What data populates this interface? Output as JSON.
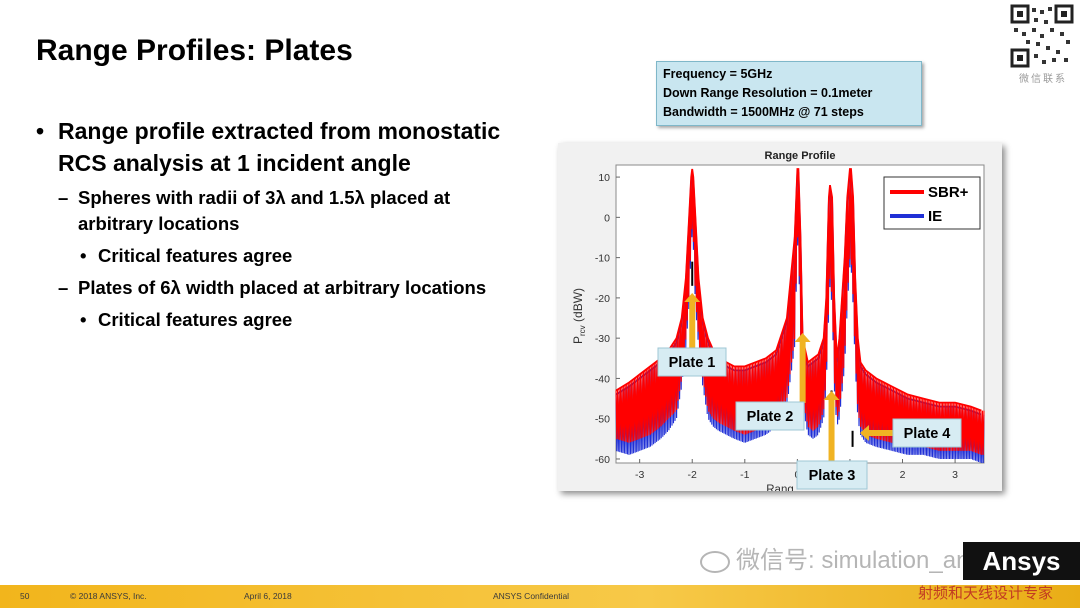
{
  "slide": {
    "title": "Range Profiles: Plates",
    "bullets": [
      {
        "level": 1,
        "text": "Range profile extracted from monostatic RCS analysis at 1 incident angle"
      },
      {
        "level": 2,
        "text": "Spheres with radii of 3λ and 1.5λ placed at arbitrary locations"
      },
      {
        "level": 3,
        "text": "Critical features agree"
      },
      {
        "level": 2,
        "text": "Plates of 6λ width placed at arbitrary locations"
      },
      {
        "level": 3,
        "text": "Critical features agree"
      }
    ]
  },
  "infobox": {
    "line1": "Frequency = 5GHz",
    "line2": "Down Range Resolution = 0.1meter",
    "line3": "Bandwidth = 1500MHz @ 71 steps"
  },
  "callouts": {
    "plate1": "Plate 1",
    "plate2": "Plate 2",
    "plate3": "Plate 3",
    "plate4": "Plate 4"
  },
  "chart_data": {
    "type": "line",
    "title": "Range Profile",
    "xlabel": "Rang",
    "ylabel": "P rcv (dBW)",
    "ylabel_main": "P",
    "ylabel_sub": "rcv",
    "ylabel_unit": "(dBW)",
    "xlim": [
      -3.45,
      3.55
    ],
    "ylim": [
      -61,
      13
    ],
    "xticks": [
      -3,
      -2,
      -1,
      0,
      1,
      2,
      3
    ],
    "yticks": [
      10,
      0,
      -10,
      -20,
      -30,
      -40,
      -50,
      -60
    ],
    "grid": false,
    "legend": {
      "position": "top-right",
      "entries": [
        {
          "name": "SBR+",
          "color": "#ff0000"
        },
        {
          "name": "IE",
          "color": "#1f2fd6"
        }
      ]
    },
    "series": [
      {
        "name": "SBR+",
        "color": "#ff0000",
        "x": [
          -3.45,
          -3.2,
          -3.0,
          -2.8,
          -2.6,
          -2.45,
          -2.3,
          -2.2,
          -2.12,
          -2.06,
          -2.02,
          -2.0,
          -1.98,
          -1.94,
          -1.88,
          -1.8,
          -1.7,
          -1.6,
          -1.5,
          -1.35,
          -1.2,
          -1.0,
          -0.8,
          -0.6,
          -0.4,
          -0.2,
          -0.05,
          0.0,
          0.02,
          0.06,
          0.1,
          0.2,
          0.3,
          0.4,
          0.5,
          0.55,
          0.6,
          0.62,
          0.66,
          0.7,
          0.75,
          0.8,
          0.9,
          0.95,
          1.0,
          1.02,
          1.06,
          1.1,
          1.15,
          1.2,
          1.3,
          1.5,
          1.8,
          2.1,
          2.4,
          2.7,
          3.0,
          3.3,
          3.5
        ],
        "y": [
          -43,
          -41,
          -39,
          -37,
          -35,
          -33,
          -30,
          -25,
          -15,
          0,
          10,
          12,
          10,
          0,
          -15,
          -25,
          -30,
          -33,
          -34,
          -36,
          -37,
          -37,
          -36,
          -35,
          -33,
          -25,
          -5,
          12,
          12,
          -5,
          -30,
          -36,
          -35,
          -34,
          -30,
          -20,
          5,
          8,
          5,
          -20,
          -35,
          -30,
          -10,
          5,
          12,
          12,
          5,
          -15,
          -30,
          -36,
          -38,
          -40,
          -42,
          -44,
          -45,
          -46,
          -46,
          -47,
          -48
        ],
        "min_envelope_y": [
          -55,
          -56,
          -55,
          -54,
          -52,
          -50,
          -48,
          -40,
          -30,
          -20,
          -5,
          -2,
          -5,
          -20,
          -30,
          -40,
          -48,
          -50,
          -51,
          -52,
          -53,
          -54,
          -53,
          -52,
          -50,
          -45,
          -30,
          -5,
          -5,
          -30,
          -45,
          -52,
          -53,
          -52,
          -48,
          -40,
          -20,
          -15,
          -20,
          -40,
          -50,
          -48,
          -35,
          -20,
          -10,
          -10,
          -20,
          -35,
          -48,
          -52,
          -54,
          -55,
          -56,
          -57,
          -57,
          -58,
          -58,
          -58,
          -59
        ]
      },
      {
        "name": "IE",
        "color": "#1f2fd6",
        "x": [
          -3.45,
          -3.2,
          -3.0,
          -2.8,
          -2.6,
          -2.45,
          -2.3,
          -2.2,
          -2.12,
          -2.06,
          -2.02,
          -2.0,
          -1.98,
          -1.94,
          -1.88,
          -1.8,
          -1.7,
          -1.6,
          -1.5,
          -1.35,
          -1.2,
          -1.0,
          -0.8,
          -0.6,
          -0.4,
          -0.2,
          -0.05,
          0.0,
          0.02,
          0.06,
          0.1,
          0.2,
          0.3,
          0.4,
          0.5,
          0.55,
          0.6,
          0.62,
          0.66,
          0.7,
          0.75,
          0.8,
          0.9,
          0.95,
          1.0,
          1.02,
          1.06,
          1.1,
          1.15,
          1.2,
          1.3,
          1.5,
          1.8,
          2.1,
          2.4,
          2.7,
          3.0,
          3.3,
          3.5
        ],
        "y": [
          -44,
          -42,
          -40,
          -38,
          -36,
          -34,
          -31,
          -26,
          -16,
          -1,
          9,
          11,
          9,
          -1,
          -16,
          -26,
          -31,
          -34,
          -35,
          -37,
          -38,
          -38,
          -37,
          -36,
          -34,
          -26,
          -6,
          11,
          11,
          -6,
          -31,
          -37,
          -36,
          -35,
          -31,
          -21,
          4,
          7,
          4,
          -21,
          -36,
          -31,
          -11,
          4,
          11,
          11,
          4,
          -16,
          -31,
          -37,
          -39,
          -41,
          -43,
          -45,
          -46,
          -47,
          -47,
          -48,
          -49
        ],
        "min_envelope_y": [
          -58,
          -59,
          -58,
          -57,
          -55,
          -53,
          -50,
          -42,
          -32,
          -22,
          -7,
          -4,
          -7,
          -22,
          -32,
          -42,
          -50,
          -52,
          -53,
          -54,
          -55,
          -56,
          -55,
          -54,
          -52,
          -47,
          -32,
          -7,
          -7,
          -32,
          -47,
          -54,
          -55,
          -54,
          -50,
          -42,
          -22,
          -17,
          -22,
          -42,
          -52,
          -50,
          -37,
          -22,
          -12,
          -12,
          -22,
          -37,
          -50,
          -54,
          -56,
          -57,
          -58,
          -59,
          -59,
          -60,
          -60,
          -60,
          -61
        ]
      }
    ],
    "markers": [
      {
        "label": "Plate 1",
        "x": -2.0,
        "y_top": -11,
        "y_bottom": -17
      },
      {
        "label": "Plate 2",
        "x": 0.1,
        "y_top": -29,
        "y_bottom": -35
      },
      {
        "label": "Plate 3",
        "x": 0.65,
        "y_top": -43,
        "y_bottom": -47
      },
      {
        "label": "Plate 4",
        "x": 1.05,
        "y_top": -53,
        "y_bottom": -57
      }
    ]
  },
  "footer": {
    "page": "50",
    "copyright": "© 2018 ANSYS, Inc.",
    "date": "April 6, 2018",
    "confidential": "ANSYS Confidential"
  },
  "overlays": {
    "qr_caption": "微信联系",
    "watermark": "微信号: simulation_ansys",
    "logo": "Ansys",
    "site": "射频和天线设计专家"
  },
  "colors": {
    "footer_band": "#f2b51c",
    "infobox_bg": "#c9e6f0",
    "callout_bg": "#d7ecf3",
    "arrow": "#f0b323"
  }
}
